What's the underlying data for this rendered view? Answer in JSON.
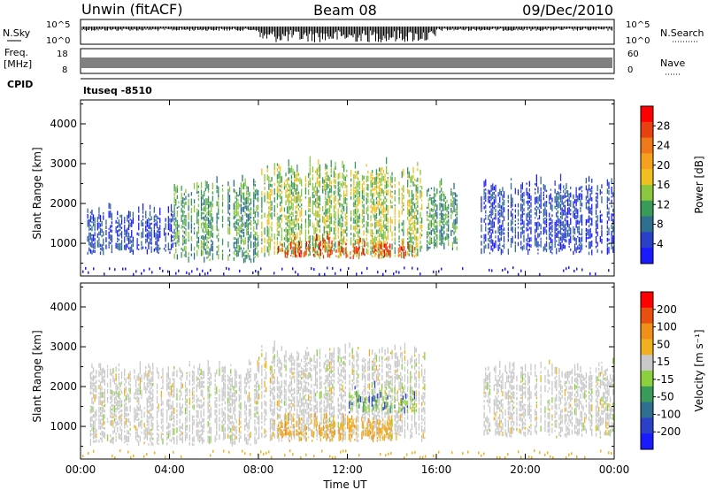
{
  "header": {
    "radar": "Unwin (fitACF)",
    "beam": "Beam 08",
    "date": "09/Dec/2010"
  },
  "topstrip": {
    "nsky_label": "N.Sky",
    "nsky_ticks": [
      "10^5",
      "10^0"
    ],
    "nsearch_label": "N.Search",
    "freq_label": "Freq.",
    "freq_unit": "[MHz]",
    "freq_ticks": [
      "18",
      "8"
    ],
    "nave_label": "Nave",
    "nave_ticks": [
      "60",
      "0"
    ],
    "cpid_label": "CPID",
    "cpid_value": "ltuseq -8510"
  },
  "colors": {
    "power": [
      "#1a1aff",
      "#2b3fc9",
      "#2e6e8e",
      "#3a9a5a",
      "#8cc63f",
      "#f0c020",
      "#f6a020",
      "#f07818",
      "#e84010",
      "#ff0000"
    ],
    "velocity": [
      "#1a1aff",
      "#2b3fc9",
      "#2e6e8e",
      "#3a9a5a",
      "#8cd040",
      "#c8c8c8",
      "#f0b020",
      "#f09018",
      "#e85010",
      "#ff0000"
    ]
  },
  "chart_data": [
    {
      "type": "heatmap",
      "title": "",
      "xlabel": "Time UT",
      "ylabel": "Slant Range [km]",
      "x_ticks": [
        "00:00",
        "04:00",
        "08:00",
        "12:00",
        "16:00",
        "20:00",
        "00:00"
      ],
      "xlim_hours": [
        0,
        24
      ],
      "y_ticks": [
        1000,
        2000,
        3000,
        4000
      ],
      "ylim": [
        180,
        4600
      ],
      "colorbar_label": "Power [dB]",
      "colorbar_ticks": [
        "28",
        "24",
        "20",
        "16",
        "12",
        "8",
        "4"
      ],
      "colorbar_range": [
        0,
        30
      ],
      "regions": [
        {
          "t0": 0.3,
          "t1": 4.2,
          "r0": 700,
          "r1": 1900,
          "level": "low"
        },
        {
          "t0": 4.2,
          "t1": 8.0,
          "r0": 500,
          "r1": 2600,
          "level": "mid"
        },
        {
          "t0": 8.0,
          "t1": 15.5,
          "r0": 600,
          "r1": 3000,
          "level": "high"
        },
        {
          "t0": 8.8,
          "t1": 15.0,
          "r0": 600,
          "r1": 1100,
          "level": "peak"
        },
        {
          "t0": 15.5,
          "t1": 17.0,
          "r0": 800,
          "r1": 2500,
          "level": "mid"
        },
        {
          "t0": 18.0,
          "t1": 24.0,
          "r0": 700,
          "r1": 2600,
          "level": "low"
        }
      ]
    },
    {
      "type": "heatmap",
      "title": "",
      "xlabel": "Time UT",
      "ylabel": "Slant Range [km]",
      "x_ticks": [
        "00:00",
        "04:00",
        "08:00",
        "12:00",
        "16:00",
        "20:00",
        "00:00"
      ],
      "xlim_hours": [
        0,
        24
      ],
      "y_ticks": [
        1000,
        2000,
        3000,
        4000
      ],
      "ylim": [
        180,
        4600
      ],
      "colorbar_label": "Velocity [m s^-1]",
      "colorbar_ticks": [
        "200",
        "100",
        "50",
        "15",
        "-15",
        "-50",
        "-100",
        "-200"
      ],
      "colorbar_range": [
        -250,
        250
      ],
      "regions": [
        {
          "t0": 0.3,
          "t1": 8.0,
          "r0": 500,
          "r1": 2600,
          "level": "neutral"
        },
        {
          "t0": 8.0,
          "t1": 15.5,
          "r0": 600,
          "r1": 3000,
          "level": "neutral"
        },
        {
          "t0": 8.8,
          "t1": 14.0,
          "r0": 600,
          "r1": 1300,
          "level": "away"
        },
        {
          "t0": 12.0,
          "t1": 15.0,
          "r0": 1300,
          "r1": 2000,
          "level": "toward"
        },
        {
          "t0": 18.0,
          "t1": 24.0,
          "r0": 700,
          "r1": 2600,
          "level": "neutral"
        }
      ]
    }
  ]
}
